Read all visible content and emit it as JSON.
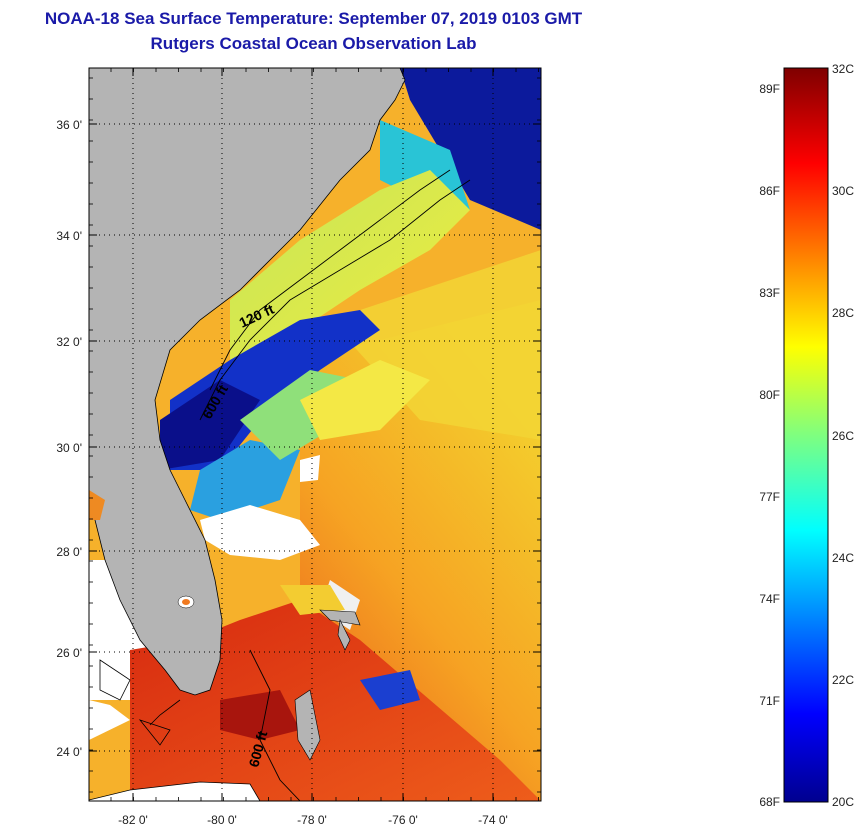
{
  "header": {
    "title": "NOAA-18 Sea Surface Temperature:  September 07, 2019 0103 GMT",
    "subtitle": "Rutgers Coastal Ocean Observation Lab"
  },
  "map": {
    "lat_range": [
      23,
      37
    ],
    "lon_range": [
      -83,
      -73
    ],
    "lat_ticks": [
      "36 0'",
      "34 0'",
      "32 0'",
      "30 0'",
      "28 0'",
      "26 0'",
      "24 0'"
    ],
    "lon_ticks": [
      "-82 0'",
      "-80 0'",
      "-78 0'",
      "-76 0'",
      "-74 0'"
    ],
    "contours": [
      {
        "label": "120 ft"
      },
      {
        "label": "600 ft"
      },
      {
        "label": "600 ft"
      }
    ],
    "colors": {
      "land": "#b4b4b4",
      "cloud": "#ffffff",
      "coast": "#000000"
    }
  },
  "colorbar": {
    "celsius_labels": [
      "32C",
      "30C",
      "28C",
      "26C",
      "24C",
      "22C",
      "20C"
    ],
    "fahrenheit_labels": [
      "89F",
      "86F",
      "83F",
      "80F",
      "77F",
      "74F",
      "71F",
      "68F"
    ],
    "range_c": [
      20,
      32
    ]
  }
}
